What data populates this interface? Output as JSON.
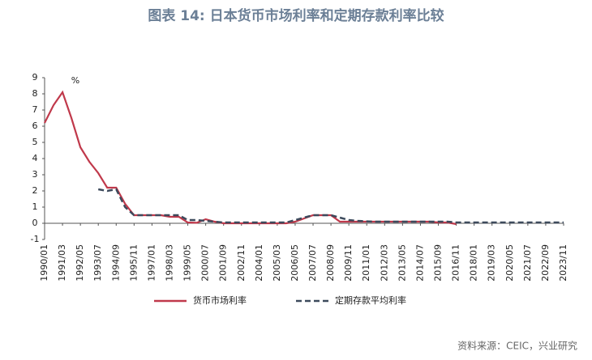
{
  "title": "图表 14: 日本货币市场利率和定期存款利率比较",
  "source": "资料来源：CEIC，兴业研究",
  "chart_data": {
    "type": "line",
    "unit_label": "%",
    "categories": [
      "1990/01",
      null,
      "1991/03",
      null,
      "1992/05",
      null,
      "1993/07",
      null,
      "1994/09",
      null,
      "1995/11",
      null,
      "1997/01",
      null,
      "1998/03",
      null,
      "1999/05",
      null,
      "2000/07",
      null,
      "2001/09",
      null,
      "2002/11",
      null,
      "2004/01",
      null,
      "2005/03",
      null,
      "2006/05",
      null,
      "2007/07",
      null,
      "2008/09",
      null,
      "2009/11",
      null,
      "2011/01",
      null,
      "2012/03",
      null,
      "2013/05",
      null,
      "2014/07",
      null,
      "2015/09",
      null,
      "2016/11",
      null,
      "2018/01",
      null,
      "2019/03",
      null,
      "2020/05",
      null,
      "2021/07",
      null,
      "2022/09",
      null,
      "2023/11"
    ],
    "series": [
      {
        "name": "货币市场利率",
        "color": "#c0394b",
        "dashed": false,
        "values": [
          6.2,
          7.3,
          8.1,
          6.5,
          4.7,
          3.8,
          3.1,
          2.2,
          2.2,
          1.2,
          0.5,
          0.5,
          0.5,
          0.5,
          0.4,
          0.4,
          0.05,
          0.03,
          0.25,
          0.1,
          0,
          0,
          0,
          0,
          0,
          0,
          0,
          0,
          0.1,
          0.3,
          0.5,
          0.5,
          0.5,
          0.1,
          0.1,
          0.1,
          0.1,
          0.1,
          0.1,
          0.1,
          0.1,
          0.1,
          0.1,
          0.1,
          0.05,
          0.05,
          -0.05,
          null,
          null,
          null,
          null,
          null,
          null,
          null,
          null,
          null,
          null,
          null,
          null
        ]
      },
      {
        "name": "定期存款平均利率",
        "color": "#3d4a5c",
        "dashed": true,
        "values": [
          null,
          null,
          null,
          null,
          null,
          null,
          2.1,
          2.0,
          2.1,
          1.0,
          0.5,
          0.5,
          0.5,
          0.5,
          0.5,
          0.5,
          0.2,
          0.2,
          0.15,
          0.1,
          0.05,
          0.05,
          0.05,
          0.05,
          0.05,
          0.05,
          0.05,
          0.05,
          0.2,
          0.35,
          0.5,
          0.5,
          0.5,
          0.35,
          0.2,
          0.15,
          0.12,
          0.1,
          0.1,
          0.1,
          0.1,
          0.1,
          0.1,
          0.1,
          0.1,
          0.1,
          0.05,
          0.05,
          0.05,
          0.05,
          0.05,
          0.05,
          0.05,
          0.05,
          0.05,
          0.05,
          0.05,
          0.05,
          0.05
        ]
      }
    ],
    "ylim": [
      -1,
      9
    ],
    "yticks": [
      -1,
      0,
      1,
      2,
      3,
      4,
      5,
      6,
      7,
      8,
      9
    ]
  }
}
